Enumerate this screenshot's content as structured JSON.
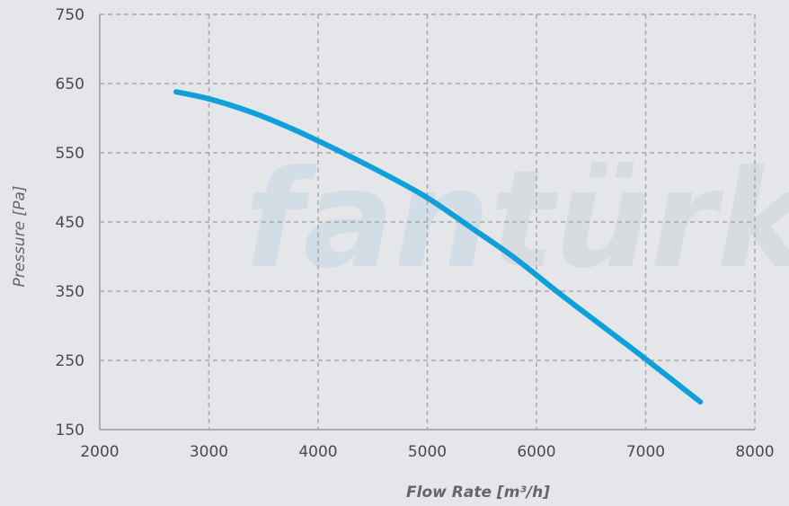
{
  "chart_data": {
    "type": "line",
    "title": "",
    "xlabel": "Flow Rate [m³/h]",
    "ylabel": "Pressure [Pa]",
    "xlim": [
      2000,
      8000
    ],
    "ylim": [
      150,
      750
    ],
    "xticks": [
      2000,
      3000,
      4000,
      5000,
      6000,
      7000,
      8000
    ],
    "yticks": [
      150,
      250,
      350,
      450,
      550,
      650,
      750
    ],
    "grid": true,
    "grid_style": "dashed",
    "watermark": {
      "part1": "fan",
      "part2": "türk"
    },
    "colors": {
      "series": "#0fa0dc",
      "grid": "#a8a8a8",
      "background": "#e4e6e9",
      "watermark1": "#d2dde6",
      "watermark2": "#d9dcdf"
    },
    "series": [
      {
        "x": [
          2700,
          3000,
          3400,
          3800,
          4200,
          4600,
          5000,
          5400,
          5800,
          6200,
          6600,
          7000,
          7500
        ],
        "y": [
          638,
          628,
          608,
          582,
          552,
          520,
          485,
          442,
          398,
          348,
          300,
          252,
          190
        ]
      }
    ]
  }
}
